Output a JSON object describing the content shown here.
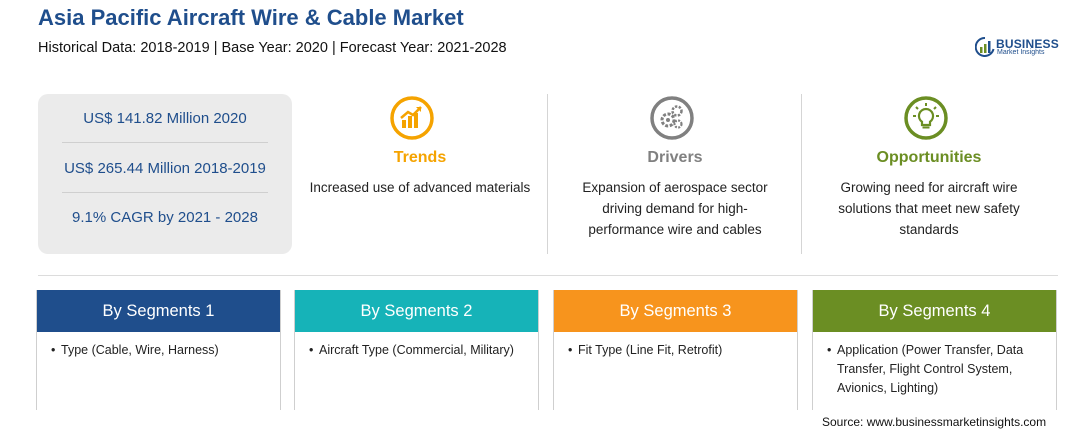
{
  "header": {
    "title": "Asia Pacific Aircraft Wire & Cable Market",
    "subtitle": "Historical Data: 2018-2019 | Base Year: 2020 | Forecast Year: 2021-2028"
  },
  "logo": {
    "name": "BUSINESS",
    "tagline": "Market Insights",
    "icon": "globe-logo-icon"
  },
  "stats": [
    "US$ 141.82 Million 2020",
    "US$ 265.44 Million 2018-2019",
    "9.1% CAGR by 2021 - 2028"
  ],
  "columns": [
    {
      "icon": "trending-chart-icon",
      "title": "Trends",
      "text": "Increased use of advanced materials",
      "color": "#f5a300"
    },
    {
      "icon": "gears-icon",
      "title": "Drivers",
      "text": "Expansion of aerospace sector driving demand for high-performance wire and cables",
      "color": "#808080"
    },
    {
      "icon": "lightbulb-icon",
      "title": "Opportunities",
      "text": "Growing need for aircraft wire solutions that meet new safety standards",
      "color": "#6b8e23"
    }
  ],
  "segments": [
    {
      "title": "By Segments 1",
      "items": [
        "Type (Cable, Wire, Harness)"
      ],
      "color": "#1f4e8c"
    },
    {
      "title": "By Segments 2",
      "items": [
        "Aircraft Type (Commercial, Military)"
      ],
      "color": "#16b3b8"
    },
    {
      "title": "By Segments 3",
      "items": [
        "Fit Type (Line Fit, Retrofit)"
      ],
      "color": "#f7941d"
    },
    {
      "title": "By Segments 4",
      "items": [
        "Application (Power Transfer, Data Transfer, Flight Control System, Avionics, Lighting)"
      ],
      "color": "#6b8e23"
    }
  ],
  "source": "Source: www.businessmarketinsights.com"
}
